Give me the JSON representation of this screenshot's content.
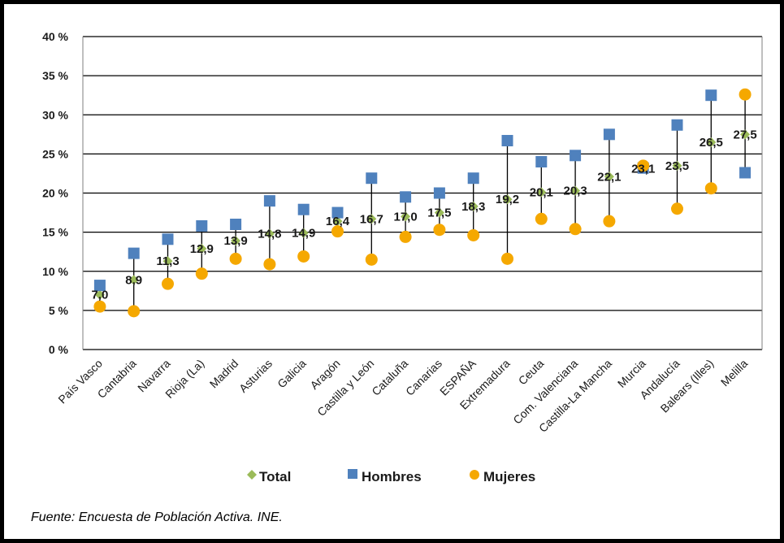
{
  "colors": {
    "total": "#9bbb59",
    "hombres": "#4f81bd",
    "mujeres": "#f5a800",
    "line": "#000000",
    "frame": "#000000"
  },
  "legend": {
    "total": "Total",
    "hombres": "Hombres",
    "mujeres": "Mujeres"
  },
  "source": "Fuente: Encuesta de Población Activa. INE.",
  "chart_data": {
    "type": "scatter",
    "title": "",
    "xlabel": "",
    "ylabel": "",
    "ylim": [
      0,
      40
    ],
    "yticks": [
      0,
      5,
      10,
      15,
      20,
      25,
      30,
      35,
      40
    ],
    "ytick_labels": [
      "0 %",
      "5 %",
      "10 %",
      "15 %",
      "20 %",
      "25 %",
      "30 %",
      "35 %",
      "40 %"
    ],
    "grid": true,
    "legend_position": "bottom",
    "categories": [
      "País Vasco",
      "Cantabria",
      "Navarra",
      "Rioja (La)",
      "Madrid",
      "Asturias",
      "Galicia",
      "Aragón",
      "Castilla y León",
      "Cataluña",
      "Canarias",
      "ESPAÑA",
      "Extremadura",
      "Ceuta",
      "Com. Valenciana",
      "Castilla-La Mancha",
      "Murcia",
      "Andalucía",
      "Balears (Illes)",
      "Melilla"
    ],
    "series": [
      {
        "name": "Total",
        "values": [
          7.0,
          8.9,
          11.3,
          12.9,
          13.9,
          14.8,
          14.9,
          16.4,
          16.7,
          17.0,
          17.5,
          18.3,
          19.2,
          20.1,
          20.3,
          22.1,
          23.1,
          23.5,
          26.5,
          27.5
        ]
      },
      {
        "name": "Hombres",
        "values": [
          8.2,
          12.3,
          14.1,
          15.8,
          16.0,
          19.0,
          17.9,
          17.5,
          21.9,
          19.5,
          20.0,
          21.9,
          26.7,
          24.0,
          24.8,
          27.5,
          23.2,
          28.7,
          32.5,
          22.6
        ]
      },
      {
        "name": "Mujeres",
        "values": [
          5.5,
          4.9,
          8.4,
          9.7,
          11.6,
          10.9,
          11.9,
          15.1,
          11.5,
          14.4,
          15.3,
          14.6,
          11.6,
          16.7,
          15.4,
          16.4,
          23.5,
          18.0,
          20.6,
          32.6
        ]
      }
    ],
    "data_labels": [
      "7,0",
      "8,9",
      "11,3",
      "12,9",
      "13,9",
      "14,8",
      "14,9",
      "16,4",
      "16,7",
      "17,0",
      "17,5",
      "18,3",
      "19,2",
      "20,1",
      "20,3",
      "22,1",
      "23,1",
      "23,5",
      "26,5",
      "27,5"
    ]
  }
}
